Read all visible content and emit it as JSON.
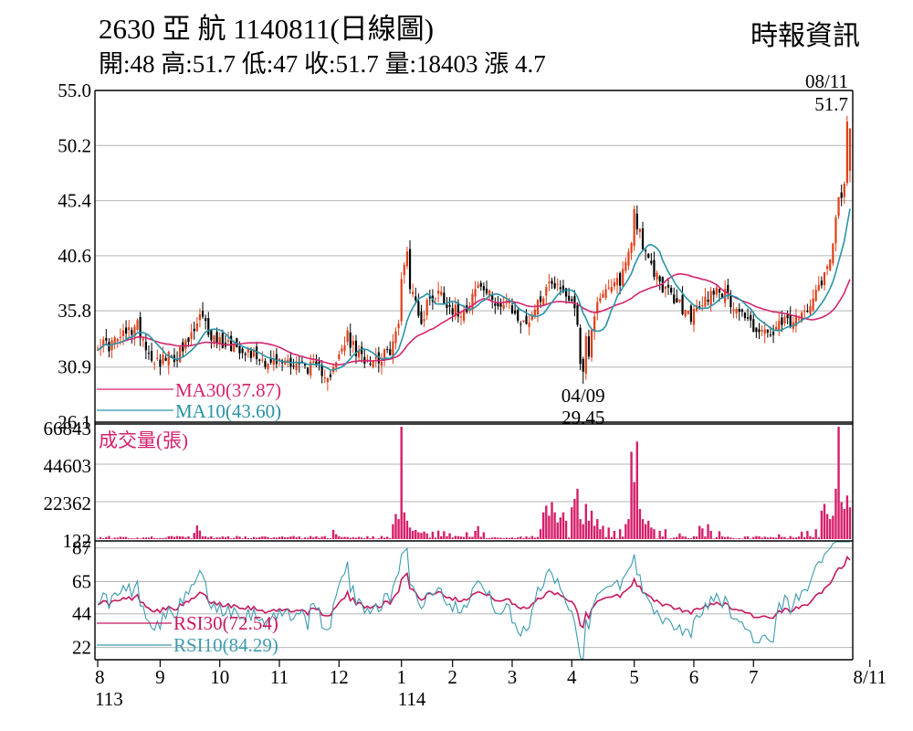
{
  "header": {
    "title": "2630  亞    航 1140811(日線圖)",
    "quote": "開:48 高:51.7 低:47 收:51.7 量:18403 漲 4.7",
    "source": "時報資訊"
  },
  "colors": {
    "up": "#e0401a",
    "down": "#000000",
    "ma30": "#d6246e",
    "ma10": "#2a93a8",
    "volume": "#d61f6b",
    "rsi30": "#c8185f",
    "rsi10": "#3c9bb0",
    "grid": "#b4b4b4"
  },
  "chart_data": [
    {
      "type": "candlestick",
      "ylim": [
        26.1,
        55.0
      ],
      "yticks": [
        "55.0",
        "50.2",
        "45.4",
        "40.6",
        "35.8",
        "30.9",
        "26.1"
      ],
      "xticks": [
        {
          "label": "8",
          "sub": "113",
          "x": 0
        },
        {
          "label": "9",
          "x": 22
        },
        {
          "label": "10",
          "x": 43
        },
        {
          "label": "11",
          "x": 64
        },
        {
          "label": "12",
          "x": 85
        },
        {
          "label": "1",
          "sub": "114",
          "x": 107
        },
        {
          "label": "2",
          "x": 125
        },
        {
          "label": "3",
          "x": 146
        },
        {
          "label": "4",
          "x": 167
        },
        {
          "label": "5",
          "x": 189
        },
        {
          "label": "6",
          "x": 210
        },
        {
          "label": "7",
          "x": 231
        },
        {
          "label": "8/11",
          "x": 272
        }
      ],
      "close_anchors": [
        [
          0,
          33.0
        ],
        [
          4,
          32.8
        ],
        [
          7,
          33.3
        ],
        [
          10,
          33.8
        ],
        [
          14,
          34.5
        ],
        [
          16,
          33.5
        ],
        [
          18,
          32.1
        ],
        [
          21,
          31.5
        ],
        [
          24,
          31.6
        ],
        [
          27,
          31.8
        ],
        [
          30,
          32.3
        ],
        [
          34,
          34.0
        ],
        [
          36,
          35.2
        ],
        [
          38,
          34.5
        ],
        [
          40,
          33.6
        ],
        [
          42,
          33.2
        ],
        [
          45,
          33.0
        ],
        [
          48,
          32.8
        ],
        [
          52,
          32.5
        ],
        [
          55,
          32.0
        ],
        [
          58,
          31.6
        ],
        [
          61,
          31.2
        ],
        [
          64,
          31.3
        ],
        [
          67,
          31.5
        ],
        [
          70,
          31.2
        ],
        [
          73,
          31.0
        ],
        [
          76,
          30.8
        ],
        [
          79,
          30.6
        ],
        [
          82,
          30.3
        ],
        [
          84,
          31.0
        ],
        [
          86,
          32.5
        ],
        [
          88,
          33.5
        ],
        [
          90,
          32.6
        ],
        [
          92,
          31.8
        ],
        [
          95,
          31.7
        ],
        [
          98,
          31.7
        ],
        [
          100,
          31.8
        ],
        [
          102,
          32.0
        ],
        [
          104,
          33.0
        ],
        [
          106,
          34.5
        ],
        [
          107,
          38.5
        ],
        [
          108,
          40.3
        ],
        [
          109,
          41.0
        ],
        [
          110,
          38.0
        ],
        [
          111,
          37.2
        ],
        [
          112,
          36.8
        ],
        [
          113,
          35.8
        ],
        [
          114,
          34.5
        ],
        [
          115,
          35.3
        ],
        [
          116,
          36.5
        ],
        [
          118,
          37.0
        ],
        [
          120,
          37.5
        ],
        [
          122,
          37.0
        ],
        [
          124,
          36.2
        ],
        [
          126,
          35.8
        ],
        [
          128,
          35.8
        ],
        [
          130,
          36.2
        ],
        [
          132,
          37.2
        ],
        [
          134,
          38.0
        ],
        [
          136,
          37.6
        ],
        [
          138,
          37.0
        ],
        [
          140,
          36.8
        ],
        [
          142,
          36.2
        ],
        [
          144,
          36.4
        ],
        [
          146,
          35.7
        ],
        [
          148,
          35.2
        ],
        [
          150,
          34.5
        ],
        [
          152,
          35.2
        ],
        [
          154,
          36.0
        ],
        [
          156,
          37.0
        ],
        [
          158,
          37.8
        ],
        [
          160,
          38.5
        ],
        [
          162,
          38.0
        ],
        [
          164,
          37.5
        ],
        [
          166,
          37.0
        ],
        [
          168,
          36.5
        ],
        [
          170,
          31.5
        ],
        [
          171,
          30.8
        ],
        [
          172,
          33.5
        ],
        [
          173,
          31.5
        ],
        [
          174,
          34.5
        ],
        [
          176,
          36.8
        ],
        [
          178,
          37.5
        ],
        [
          180,
          37.3
        ],
        [
          182,
          38.0
        ],
        [
          184,
          38.5
        ],
        [
          186,
          40.0
        ],
        [
          188,
          42.0
        ],
        [
          189,
          44.5
        ],
        [
          190,
          43.5
        ],
        [
          191,
          42.8
        ],
        [
          192,
          41.5
        ],
        [
          193,
          40.5
        ],
        [
          195,
          39.5
        ],
        [
          197,
          38.8
        ],
        [
          199,
          38.0
        ],
        [
          201,
          37.3
        ],
        [
          203,
          36.8
        ],
        [
          205,
          36.3
        ],
        [
          207,
          35.6
        ],
        [
          209,
          35.4
        ],
        [
          211,
          35.8
        ],
        [
          213,
          36.4
        ],
        [
          215,
          37.0
        ],
        [
          217,
          37.8
        ],
        [
          219,
          37.6
        ],
        [
          221,
          37.2
        ],
        [
          223,
          36.6
        ],
        [
          225,
          36.2
        ],
        [
          227,
          35.6
        ],
        [
          229,
          35.0
        ],
        [
          231,
          34.4
        ],
        [
          233,
          34.1
        ],
        [
          235,
          33.8
        ],
        [
          237,
          33.6
        ],
        [
          239,
          34.1
        ],
        [
          241,
          34.6
        ],
        [
          243,
          34.9
        ],
        [
          245,
          34.7
        ],
        [
          247,
          35.0
        ],
        [
          249,
          35.8
        ],
        [
          251,
          36.8
        ],
        [
          253,
          37.8
        ],
        [
          255,
          38.5
        ],
        [
          257,
          39.6
        ],
        [
          258,
          40.3
        ],
        [
          259,
          42.0
        ],
        [
          260,
          44.5
        ],
        [
          261,
          46.2
        ],
        [
          262,
          45.5
        ],
        [
          263,
          47.0
        ],
        [
          264,
          51.7
        ]
      ],
      "series": [
        {
          "name": "MA30",
          "label": "MA30(37.87)",
          "period": 30
        },
        {
          "name": "MA10",
          "label": "MA10(43.60)",
          "period": 10
        }
      ],
      "annotations": [
        {
          "date": "04/09",
          "value": "29.45"
        },
        {
          "date": "08/11",
          "value": "51.7"
        }
      ]
    },
    {
      "type": "bar",
      "title": "成交量(張)",
      "ylim": [
        122,
        66843
      ],
      "yticks": [
        "66843",
        "44603",
        "22362",
        "122"
      ],
      "spikes": [
        [
          34,
          3800
        ],
        [
          35,
          8200
        ],
        [
          36,
          5200
        ],
        [
          83,
          5600
        ],
        [
          84,
          3000
        ],
        [
          104,
          9000
        ],
        [
          105,
          15000
        ],
        [
          106,
          12000
        ],
        [
          107,
          66843
        ],
        [
          108,
          16000
        ],
        [
          109,
          11000
        ],
        [
          110,
          7000
        ],
        [
          111,
          5000
        ],
        [
          112,
          5600
        ],
        [
          113,
          4200
        ],
        [
          114,
          3800
        ],
        [
          115,
          4600
        ],
        [
          116,
          3500
        ],
        [
          118,
          4500
        ],
        [
          120,
          5200
        ],
        [
          122,
          4800
        ],
        [
          124,
          3600
        ],
        [
          130,
          4200
        ],
        [
          133,
          5000
        ],
        [
          134,
          7800
        ],
        [
          136,
          4200
        ],
        [
          156,
          6000
        ],
        [
          157,
          16000
        ],
        [
          158,
          20000
        ],
        [
          159,
          14000
        ],
        [
          160,
          22000
        ],
        [
          161,
          16000
        ],
        [
          162,
          10000
        ],
        [
          163,
          13000
        ],
        [
          164,
          16000
        ],
        [
          165,
          11000
        ],
        [
          167,
          19000
        ],
        [
          168,
          24000
        ],
        [
          169,
          30000
        ],
        [
          170,
          12000
        ],
        [
          171,
          9000
        ],
        [
          172,
          21000
        ],
        [
          173,
          11000
        ],
        [
          174,
          17000
        ],
        [
          175,
          8000
        ],
        [
          176,
          12000
        ],
        [
          177,
          6000
        ],
        [
          178,
          8000
        ],
        [
          180,
          7000
        ],
        [
          182,
          5000
        ],
        [
          184,
          6000
        ],
        [
          186,
          9000
        ],
        [
          187,
          12000
        ],
        [
          188,
          52000
        ],
        [
          189,
          34000
        ],
        [
          190,
          58000
        ],
        [
          191,
          18000
        ],
        [
          192,
          12000
        ],
        [
          193,
          9000
        ],
        [
          194,
          11000
        ],
        [
          195,
          7000
        ],
        [
          196,
          6000
        ],
        [
          198,
          5000
        ],
        [
          200,
          6000
        ],
        [
          205,
          3500
        ],
        [
          212,
          8000
        ],
        [
          213,
          6500
        ],
        [
          215,
          9000
        ],
        [
          216,
          5000
        ],
        [
          219,
          4800
        ],
        [
          240,
          3000
        ],
        [
          248,
          4600
        ],
        [
          250,
          5000
        ],
        [
          253,
          6000
        ],
        [
          255,
          17000
        ],
        [
          256,
          21000
        ],
        [
          257,
          15000
        ],
        [
          258,
          12000
        ],
        [
          259,
          14000
        ],
        [
          260,
          30000
        ],
        [
          261,
          66843
        ],
        [
          262,
          22000
        ],
        [
          263,
          18000
        ],
        [
          264,
          26000
        ],
        [
          265,
          19000
        ]
      ]
    },
    {
      "type": "line",
      "ylim": [
        14,
        91
      ],
      "yticks": [
        "87",
        "65",
        "44",
        "22"
      ],
      "series": [
        {
          "name": "RSI30",
          "label": "RSI30(72.54)",
          "period": 30
        },
        {
          "name": "RSI10",
          "label": "RSI10(84.29)",
          "period": 10
        }
      ]
    }
  ]
}
